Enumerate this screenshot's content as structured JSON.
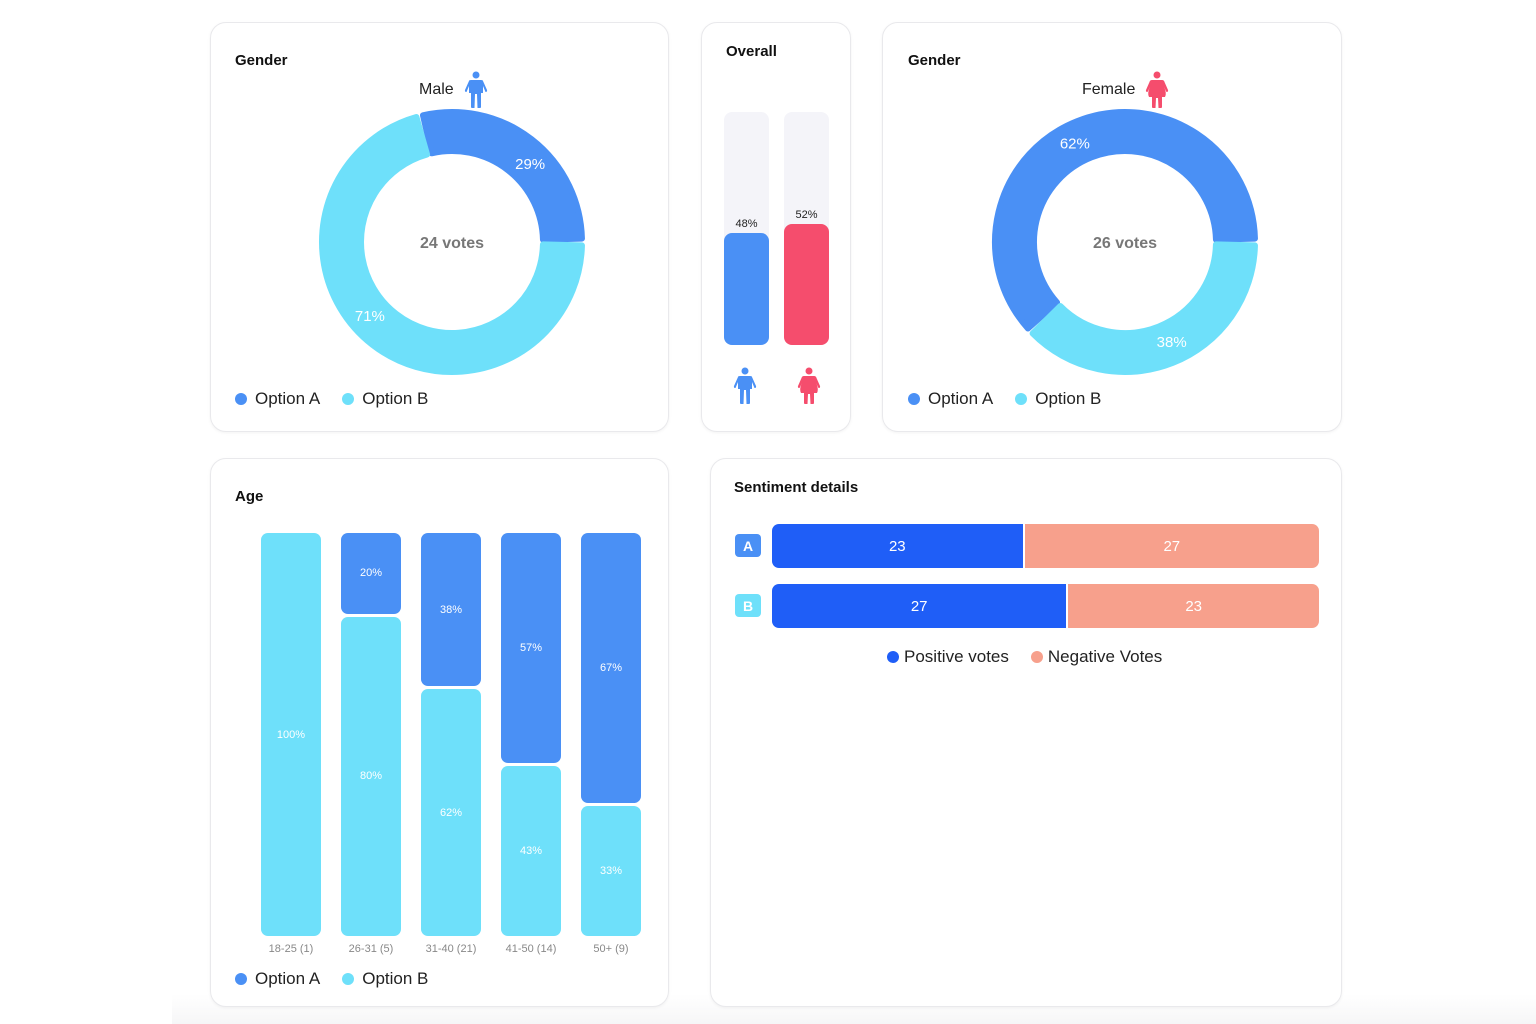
{
  "colors": {
    "option_a": "#4a90f5",
    "option_b": "#6ee0fa",
    "male": "#4a90f5",
    "female": "#f54d6d",
    "positive": "#1f5ef7",
    "negative": "#f7a08c",
    "badge_a": "#4a90f5",
    "badge_b": "#6ee0fa"
  },
  "male_card": {
    "title": "Gender",
    "gender_label": "Male",
    "gender_icon": "male-person-icon",
    "center_label": "24 votes",
    "legend": [
      "Option A",
      "Option B"
    ]
  },
  "overall_card": {
    "title": "Overall",
    "icons": [
      "male-person-icon",
      "female-person-icon"
    ]
  },
  "female_card": {
    "title": "Gender",
    "gender_label": "Female",
    "gender_icon": "female-person-icon",
    "center_label": "26 votes",
    "legend": [
      "Option A",
      "Option B"
    ]
  },
  "age_card": {
    "title": "Age",
    "legend": [
      "Option A",
      "Option B"
    ]
  },
  "sentiment_card": {
    "title": "Sentiment details",
    "legend": [
      "Positive votes",
      "Negative Votes"
    ]
  },
  "chart_data": [
    {
      "type": "pie",
      "id": "male-donut",
      "title": "Gender",
      "subtitle": "Male",
      "center_label": "24 votes",
      "total_votes": 24,
      "categories": [
        "Option A",
        "Option B"
      ],
      "values": [
        29,
        71
      ],
      "labels": [
        "29%",
        "71%"
      ],
      "legend": "bottom-left"
    },
    {
      "type": "bar",
      "id": "overall",
      "title": "Overall",
      "categories": [
        "Male",
        "Female"
      ],
      "values": [
        48,
        52
      ],
      "labels": [
        "48%",
        "52%"
      ],
      "ylim": [
        0,
        100
      ]
    },
    {
      "type": "pie",
      "id": "female-donut",
      "title": "Gender",
      "subtitle": "Female",
      "center_label": "26 votes",
      "total_votes": 26,
      "categories": [
        "Option A",
        "Option B"
      ],
      "values": [
        62,
        38
      ],
      "labels": [
        "62%",
        "38%"
      ],
      "legend": "bottom-left"
    },
    {
      "type": "bar",
      "id": "age",
      "title": "Age",
      "stacked": true,
      "categories": [
        "18-25 (1)",
        "26-31 (5)",
        "31-40 (21)",
        "41-50 (14)",
        "50+ (9)"
      ],
      "series": [
        {
          "name": "Option A",
          "values": [
            0,
            20,
            38,
            57,
            67
          ],
          "labels": [
            "",
            "20%",
            "38%",
            "57%",
            "67%"
          ]
        },
        {
          "name": "Option B",
          "values": [
            100,
            80,
            62,
            43,
            33
          ],
          "labels": [
            "100%",
            "80%",
            "62%",
            "43%",
            "33%"
          ]
        }
      ],
      "ylim": [
        0,
        100
      ],
      "legend": "bottom-left"
    },
    {
      "type": "bar",
      "id": "sentiment",
      "title": "Sentiment details",
      "orientation": "horizontal",
      "stacked": true,
      "categories": [
        "A",
        "B"
      ],
      "series": [
        {
          "name": "Positive votes",
          "values": [
            23,
            27
          ]
        },
        {
          "name": "Negative Votes",
          "values": [
            27,
            23
          ]
        }
      ],
      "legend": "bottom-center"
    }
  ]
}
